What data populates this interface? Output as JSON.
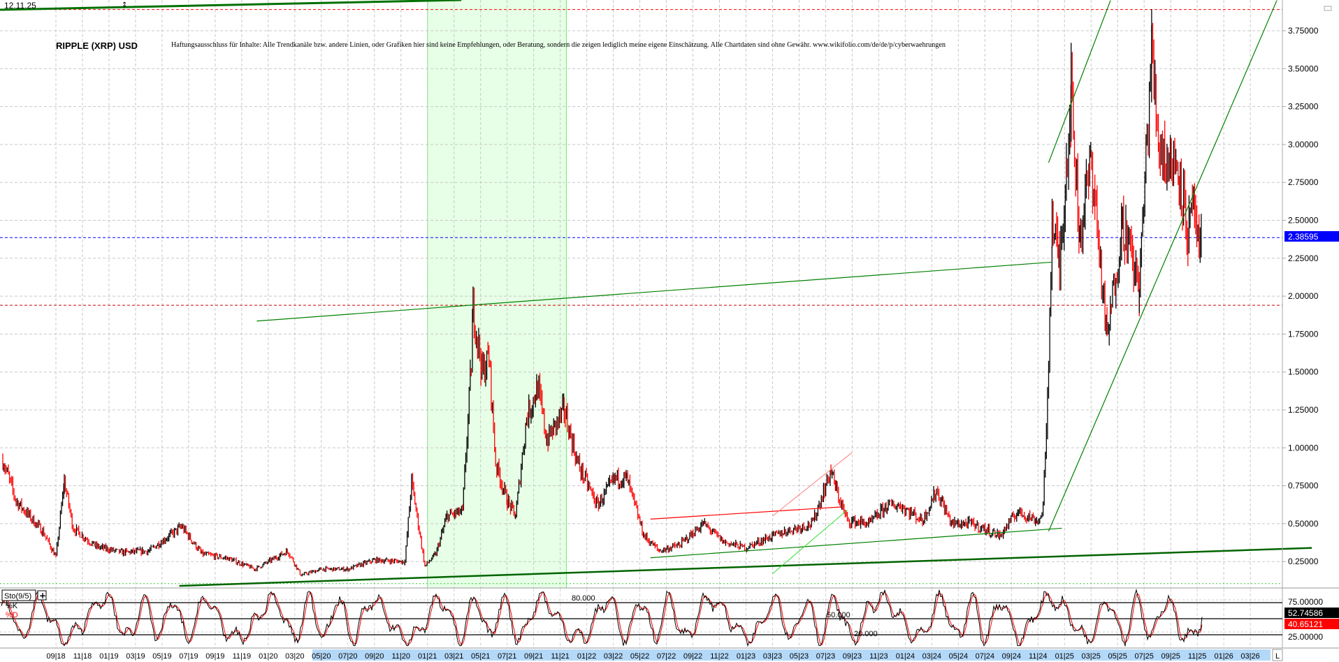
{
  "header": {
    "date": "12.11.25"
  },
  "chart_data": {
    "type": "candlestick",
    "title": "RIPPLE (XRP) USD",
    "disclaimer": "Haftungsausschluss für Inhalte: Alle Trendkanäle bzw. andere Linien, oder Grafiken hier sind keine Empfehlungen, oder Beratung, sondern die zeigen lediglich meine eigene Einschätzung. Alle Chartdaten sind ohne Gewähr. www.wikifolio.com/de/de/p/cyberwaehrungen",
    "y_ticks": [
      "3.75000",
      "3.50000",
      "3.25000",
      "3.00000",
      "2.75000",
      "2.50000",
      "2.25000",
      "2.00000",
      "1.75000",
      "1.50000",
      "1.25000",
      "1.00000",
      "0.75000",
      "0.50000",
      "0.25000"
    ],
    "ylim": [
      0.0,
      3.95
    ],
    "grid": true,
    "last_price": "2.38595",
    "x_ticks": [
      "09|18",
      "11|18",
      "01|19",
      "03|19",
      "05|19",
      "07|19",
      "09|19",
      "11|19",
      "01|20",
      "03|20",
      "05|20",
      "07|20",
      "09|20",
      "11|20",
      "01|21",
      "03|21",
      "05|21",
      "07|21",
      "09|21",
      "11|21",
      "01|22",
      "03|22",
      "05|22",
      "07|22",
      "09|22",
      "11|22",
      "01|23",
      "03|23",
      "05|23",
      "07|23",
      "09|23",
      "11|23",
      "01|24",
      "03|24",
      "05|24",
      "07|24",
      "09|24",
      "11|24",
      "01|25",
      "03|25",
      "05|25",
      "07|25",
      "09|25",
      "11|25",
      "01|26",
      "03|26"
    ],
    "price_path": [
      [
        "2018-05-01",
        0.92
      ],
      [
        "2018-06-01",
        0.65
      ],
      [
        "2018-08-01",
        0.45
      ],
      [
        "2018-09-01",
        0.28
      ],
      [
        "2018-09-20",
        0.78
      ],
      [
        "2018-10-10",
        0.47
      ],
      [
        "2018-12-01",
        0.35
      ],
      [
        "2019-02-01",
        0.31
      ],
      [
        "2019-04-01",
        0.32
      ],
      [
        "2019-06-15",
        0.48
      ],
      [
        "2019-08-01",
        0.3
      ],
      [
        "2019-10-01",
        0.27
      ],
      [
        "2019-12-01",
        0.2
      ],
      [
        "2020-02-15",
        0.32
      ],
      [
        "2020-03-15",
        0.16
      ],
      [
        "2020-05-01",
        0.2
      ],
      [
        "2020-07-01",
        0.2
      ],
      [
        "2020-09-01",
        0.26
      ],
      [
        "2020-11-10",
        0.25
      ],
      [
        "2020-11-25",
        0.78
      ],
      [
        "2020-12-25",
        0.22
      ],
      [
        "2021-01-20",
        0.3
      ],
      [
        "2021-02-15",
        0.55
      ],
      [
        "2021-03-20",
        0.58
      ],
      [
        "2021-04-10",
        1.55
      ],
      [
        "2021-04-14",
        1.93
      ],
      [
        "2021-05-05",
        1.5
      ],
      [
        "2021-05-20",
        1.6
      ],
      [
        "2021-06-05",
        0.9
      ],
      [
        "2021-07-01",
        0.65
      ],
      [
        "2021-07-20",
        0.55
      ],
      [
        "2021-08-15",
        1.2
      ],
      [
        "2021-09-10",
        1.4
      ],
      [
        "2021-10-01",
        1.05
      ],
      [
        "2021-11-10",
        1.25
      ],
      [
        "2021-12-10",
        0.9
      ],
      [
        "2022-01-25",
        0.62
      ],
      [
        "2022-03-05",
        0.8
      ],
      [
        "2022-04-01",
        0.8
      ],
      [
        "2022-05-10",
        0.42
      ],
      [
        "2022-06-15",
        0.32
      ],
      [
        "2022-08-01",
        0.36
      ],
      [
        "2022-09-25",
        0.5
      ],
      [
        "2022-11-10",
        0.38
      ],
      [
        "2022-12-30",
        0.34
      ],
      [
        "2023-02-15",
        0.4
      ],
      [
        "2023-04-01",
        0.45
      ],
      [
        "2023-06-01",
        0.5
      ],
      [
        "2023-07-13",
        0.85
      ],
      [
        "2023-07-25",
        0.72
      ],
      [
        "2023-08-20",
        0.52
      ],
      [
        "2023-10-10",
        0.5
      ],
      [
        "2023-11-20",
        0.62
      ],
      [
        "2023-12-20",
        0.62
      ],
      [
        "2024-02-10",
        0.52
      ],
      [
        "2024-03-12",
        0.72
      ],
      [
        "2024-04-15",
        0.5
      ],
      [
        "2024-06-01",
        0.5
      ],
      [
        "2024-08-05",
        0.42
      ],
      [
        "2024-09-15",
        0.58
      ],
      [
        "2024-10-30",
        0.52
      ],
      [
        "2024-11-10",
        0.55
      ],
      [
        "2024-11-20",
        1.05
      ],
      [
        "2024-12-03",
        2.5
      ],
      [
        "2024-12-20",
        2.2
      ],
      [
        "2025-01-16",
        3.35
      ],
      [
        "2025-02-05",
        2.4
      ],
      [
        "2025-03-02",
        2.9
      ],
      [
        "2025-04-07",
        1.7
      ],
      [
        "2025-05-12",
        2.5
      ],
      [
        "2025-06-20",
        2.05
      ],
      [
        "2025-07-18",
        3.62
      ],
      [
        "2025-08-05",
        3.0
      ],
      [
        "2025-08-25",
        2.9
      ],
      [
        "2025-09-20",
        2.85
      ],
      [
        "2025-10-10",
        2.4
      ],
      [
        "2025-10-25",
        2.6
      ],
      [
        "2025-11-05",
        2.2
      ],
      [
        "2025-11-12",
        2.38595
      ]
    ],
    "trendlines": [
      {
        "color": "#008000",
        "width": 1.2,
        "from": [
          "2019-12-05",
          1.836
        ],
        "to": [
          "2024-12-01",
          2.224
        ]
      },
      {
        "color": "#006400",
        "width": 2.5,
        "from": [
          "2019-06-10",
          0.09
        ],
        "to": [
          "2026-07-20",
          0.34
        ]
      },
      {
        "color": "#008000",
        "width": 1.2,
        "from": [
          "2024-11-25",
          2.88
        ],
        "to": [
          "2025-04-15",
          3.95
        ]
      },
      {
        "color": "#008000",
        "width": 1.2,
        "from": [
          "2024-11-25",
          0.45
        ],
        "to": [
          "2026-05-01",
          3.95
        ]
      },
      {
        "color": "#008000",
        "width": 1.2,
        "from": [
          "2022-05-25",
          0.275
        ],
        "to": [
          "2024-12-25",
          0.47
        ]
      },
      {
        "color": "#ff0000",
        "width": 1.2,
        "from": [
          "2022-05-25",
          0.53
        ],
        "to": [
          "2023-08-05",
          0.61
        ]
      },
      {
        "color": "#ff8080",
        "width": 1,
        "from": [
          "2023-03-01",
          0.55
        ],
        "to": [
          "2023-09-01",
          0.97
        ]
      },
      {
        "color": "#33dd33",
        "width": 1,
        "from": [
          "2023-03-01",
          0.17
        ],
        "to": [
          "2023-08-20",
          0.59
        ]
      }
    ],
    "hlines": [
      {
        "price": 3.89,
        "color": "#ff0000",
        "style": "dashed"
      },
      {
        "price": 1.94,
        "color": "#cc0000",
        "style": "dashed"
      },
      {
        "price": 2.38595,
        "color": "#0000ff",
        "style": "dashed"
      },
      {
        "price": 0.105,
        "color": "#33cc33",
        "style": "dotted"
      }
    ],
    "highlight_range": {
      "from": "2021-01-01",
      "to": "2021-11-15",
      "color": "#e6ffe6"
    }
  },
  "oscillator": {
    "label": "Sto(9/5)",
    "k_label": "%K",
    "d_label": "%D",
    "level_high": "80.000",
    "level_mid": "50.000",
    "level_low": "20.000",
    "axis_high": "75.00000",
    "axis_low": "25.00000",
    "k_value": "52.74586",
    "d_value": "40.65121",
    "k_color": "#000000",
    "d_color": "#ff0000"
  },
  "footer": {
    "scale_mode": "L"
  }
}
